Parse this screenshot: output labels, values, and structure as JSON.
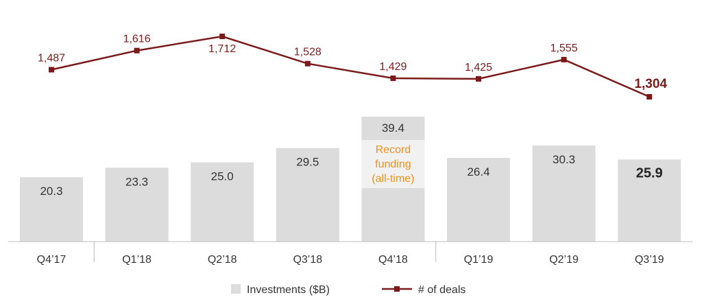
{
  "chart_data": {
    "type": "bar",
    "categories": [
      "Q4’17",
      "Q1’18",
      "Q2’18",
      "Q3’18",
      "Q4’18",
      "Q1’19",
      "Q2’19",
      "Q3’19"
    ],
    "series": [
      {
        "name": "Investments ($B)",
        "type": "bar",
        "values": [
          20.3,
          23.3,
          25.0,
          29.5,
          39.4,
          26.4,
          30.3,
          25.9
        ],
        "labels": [
          "20.3",
          "23.3",
          "25.0",
          "29.5",
          "39.4",
          "26.4",
          "30.3",
          "25.9"
        ],
        "color": "#dcdcdc"
      },
      {
        "name": "# of deals",
        "type": "line",
        "values": [
          1487,
          1616,
          1712,
          1528,
          1429,
          1425,
          1555,
          1304
        ],
        "labels": [
          "1,487",
          "1,616",
          "1,712",
          "1,528",
          "1,429",
          "1,425",
          "1,555",
          "1,304"
        ],
        "color": "#7a1a1a"
      }
    ],
    "annotation": {
      "category": "Q4’18",
      "lines": [
        "Record",
        "funding",
        "(all-time)"
      ],
      "color": "#f0901a"
    },
    "highlight_last": true,
    "grid": false,
    "legend_position": "bottom"
  }
}
